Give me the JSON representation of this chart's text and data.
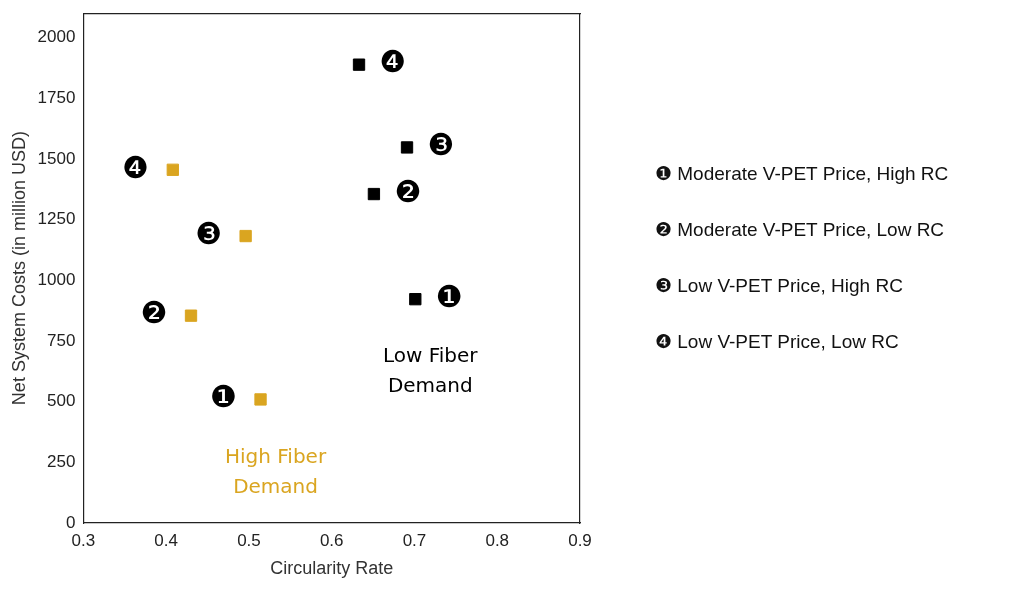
{
  "chart_data": {
    "type": "scatter",
    "xlabel": "Circularity Rate",
    "ylabel": "Net System Costs (in million USD)",
    "xlim": [
      0.3,
      0.9
    ],
    "xticks": [
      0.3,
      0.4,
      0.5,
      0.6,
      0.7,
      0.8,
      0.9
    ],
    "ylim": [
      0,
      2100
    ],
    "yticks": [
      0,
      250,
      500,
      750,
      1000,
      1250,
      1500,
      1750,
      2000
    ],
    "grid": false,
    "legend": false,
    "marker": "square",
    "series": [
      {
        "name": "Low Fiber Demand",
        "color": "#000000",
        "x": [
          0.701,
          0.651,
          0.691,
          0.633
        ],
        "values": [
          922,
          1355,
          1547,
          1888
        ],
        "value_labels": [
          "❶",
          "❷",
          "❸",
          "❹"
        ]
      },
      {
        "name": "High Fiber Demand",
        "color": "#daa520",
        "x": [
          0.514,
          0.43,
          0.496,
          0.408
        ],
        "values": [
          509,
          854,
          1182,
          1455
        ],
        "value_labels": [
          "❶",
          "❷",
          "❸",
          "❹"
        ]
      }
    ],
    "annotations": [
      "❶ Moderate V-PET Price, High RC",
      "❷ Moderate V-PET Price, Low RC",
      "❸ Low V-PET Price, High RC",
      "❹ Low V-PET Price, Low RC"
    ]
  }
}
